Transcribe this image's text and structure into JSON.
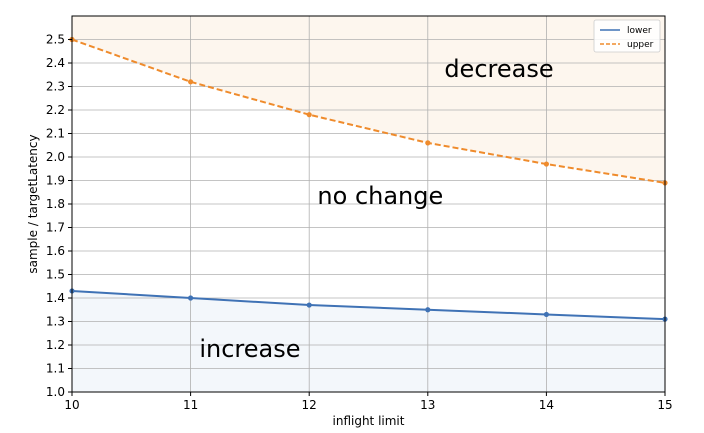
{
  "chart_data": {
    "type": "line",
    "title": "",
    "xlabel": "inflight limit",
    "ylabel": "sample / targetLatency",
    "xlim": [
      10,
      15
    ],
    "ylim": [
      1.0,
      2.6
    ],
    "x_ticks": [
      10,
      11,
      12,
      13,
      14,
      15
    ],
    "y_ticks": [
      1.0,
      1.1,
      1.2,
      1.3,
      1.4,
      1.5,
      1.6,
      1.7,
      1.8,
      1.9,
      2.0,
      2.1,
      2.2,
      2.3,
      2.4,
      2.5
    ],
    "grid": true,
    "legend_position": "top-right",
    "x": [
      10,
      11,
      12,
      13,
      14,
      15
    ],
    "series": [
      {
        "name": "lower",
        "values": [
          1.43,
          1.4,
          1.37,
          1.35,
          1.33,
          1.31
        ],
        "color": "#3f72b5",
        "style": "solid"
      },
      {
        "name": "upper",
        "values": [
          2.5,
          2.32,
          2.18,
          2.06,
          1.97,
          1.89
        ],
        "color": "#ef8b2c",
        "style": "dashed"
      }
    ],
    "annotations": [
      {
        "text": "decrease",
        "x": 13.6,
        "y": 2.34
      },
      {
        "text": "no change",
        "x": 12.6,
        "y": 1.8
      },
      {
        "text": "increase",
        "x": 11.5,
        "y": 1.15
      }
    ],
    "colors": {
      "upper_region": "#fdf6ee",
      "lower_region": "#f3f7fb",
      "grid": "#b0b0b0"
    }
  }
}
